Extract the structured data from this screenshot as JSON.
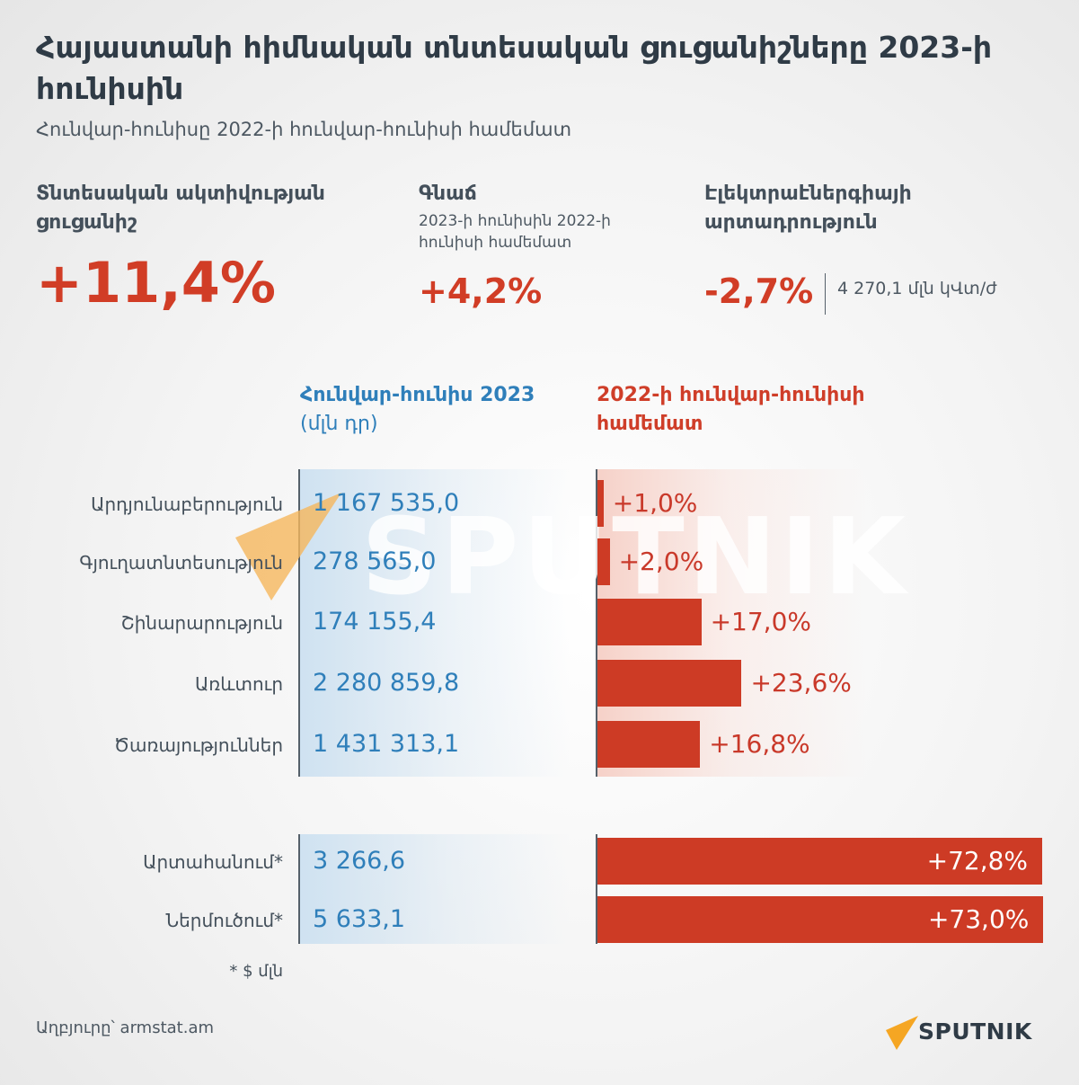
{
  "title": "Հայաստանի հիմնական տնտեսական ցուցանիշները 2023-ի հունիսին",
  "subtitle": "Հունվար-հունիսը 2022-ի հունվար-հունիսի համեմատ",
  "kpis": {
    "activity": {
      "label": "Տնտեսական ակտիվության ցուցանիշ",
      "value": "+11,4%"
    },
    "prices": {
      "label": "Գնաճ",
      "note": "2023-ի հունիսին 2022-ի հունիսի համեմատ",
      "value": "+4,2%"
    },
    "electricity": {
      "label": "Էլեկտրաէներգիայի արտադրություն",
      "value": "-2,7%",
      "extra": "4 270,1 մլն կՎտ/ժ"
    }
  },
  "columns": {
    "volume_header": "Հունվար-հունիս 2023",
    "volume_unit": "(մլն դր)",
    "change_header": "2022-ի հունվար-հունիսի համեմատ"
  },
  "chart_data": {
    "type": "bar",
    "categories": [
      "Արդյունաբերություն",
      "Գյուղատնտեսություն",
      "Շինարարություն",
      "Առևտուր",
      "Ծառայություններ",
      "Արտահանում*",
      "Ներմուծում*"
    ],
    "value_labels": [
      "1 167 535,0",
      "278 565,0",
      "174 155,4",
      "2 280 859,8",
      "1 431 313,1",
      "3 266,6",
      "5 633,1"
    ],
    "values": [
      1167535.0,
      278565.0,
      174155.4,
      2280859.8,
      1431313.1,
      3266.6,
      5633.1
    ],
    "change_labels": [
      "+1,0%",
      "+2,0%",
      "+17,0%",
      "+23,6%",
      "+16,8%",
      "+72,8%",
      "+73,0%"
    ],
    "change_values": [
      1.0,
      2.0,
      17.0,
      23.6,
      16.8,
      72.8,
      73.0
    ],
    "bar_color": "#cd3b25",
    "value_color": "#2f7fba"
  },
  "footnote": "* $ մլն",
  "source": "Աղբյուրը՝ armstat.am",
  "brand": {
    "logo_text": "SPUTNIK",
    "watermark_text": "SPUTNIK",
    "accent": "#f5a623"
  }
}
